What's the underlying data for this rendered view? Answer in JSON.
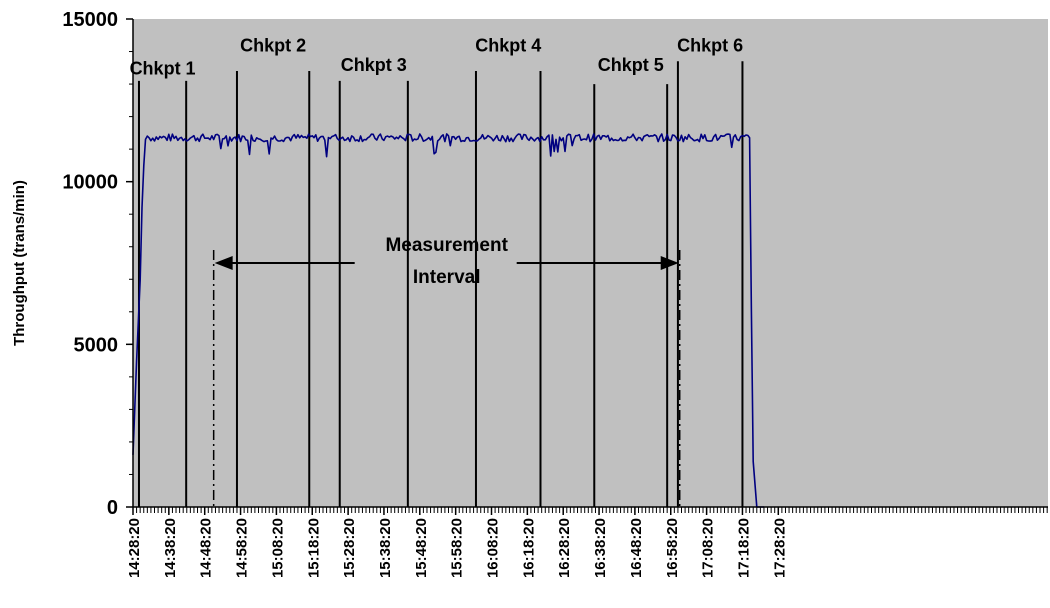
{
  "chart_data": {
    "type": "line",
    "title": "",
    "xlabel": "",
    "ylabel": "Throughput (trans/min)",
    "ylim": [
      0,
      15000
    ],
    "y_ticks": [
      0,
      5000,
      10000,
      15000
    ],
    "x_range_minutes": [
      0,
      202
    ],
    "x_ticks": [
      "14:28:20",
      "14:38:20",
      "14:48:20",
      "14:58:20",
      "15:08:20",
      "15:18:20",
      "15:28:20",
      "15:38:20",
      "15:48:20",
      "15:58:20",
      "16:08:20",
      "16:18:20",
      "16:28:20",
      "16:38:20",
      "16:48:20",
      "16:58:20",
      "17:08:20",
      "17:18:20",
      "17:28:20"
    ],
    "series": [
      {
        "name": "",
        "color": "#000080",
        "points": [
          {
            "t": "14:28:20",
            "y": 1600
          },
          {
            "t": "14:29:20",
            "y": 4500
          },
          {
            "t": "14:30:20",
            "y": 7000
          },
          {
            "t": "14:30:50",
            "y": 9200
          },
          {
            "t": "14:31:20",
            "y": 10500
          },
          {
            "t": "14:31:50",
            "y": 11300
          },
          {
            "t": "14:32:20",
            "y": 11400
          },
          {
            "t": "17:20:20",
            "y": 11350
          },
          {
            "t": "17:20:50",
            "y": 6000
          },
          {
            "t": "17:21:20",
            "y": 1400
          },
          {
            "t": "17:22:20",
            "y": 0
          },
          {
            "t": "17:24:20",
            "y": 0
          }
        ],
        "steady_level": 11350
      }
    ],
    "checkpoints": [
      {
        "label": "Chkpt 1",
        "start": "14:30:00",
        "end": "14:43:10",
        "top": 13100,
        "label_y": 13300
      },
      {
        "label": "Chkpt 2",
        "start": "14:57:20",
        "end": "15:17:30",
        "top": 13400,
        "label_y": 14000
      },
      {
        "label": "Chkpt 3",
        "start": "15:26:00",
        "end": "15:45:00",
        "top": 13100,
        "label_y": 13400
      },
      {
        "label": "Chkpt 4",
        "start": "16:04:00",
        "end": "16:22:00",
        "top": 13400,
        "label_y": 14000
      },
      {
        "label": "Chkpt 5",
        "start": "16:37:00",
        "end": "16:57:20",
        "top": 13000,
        "label_y": 13400
      },
      {
        "label": "Chkpt 6",
        "start": "17:00:20",
        "end": "17:18:20",
        "top": 13700,
        "label_y": 14000
      }
    ],
    "measurement_interval": {
      "label_line1": "Measurement",
      "label_line2": "Interval",
      "start": "14:50:50",
      "end": "17:00:50",
      "y": 7500,
      "marker_top": 7900
    },
    "plot_background": "#c0c0c0",
    "grid": false,
    "legend": "none"
  }
}
